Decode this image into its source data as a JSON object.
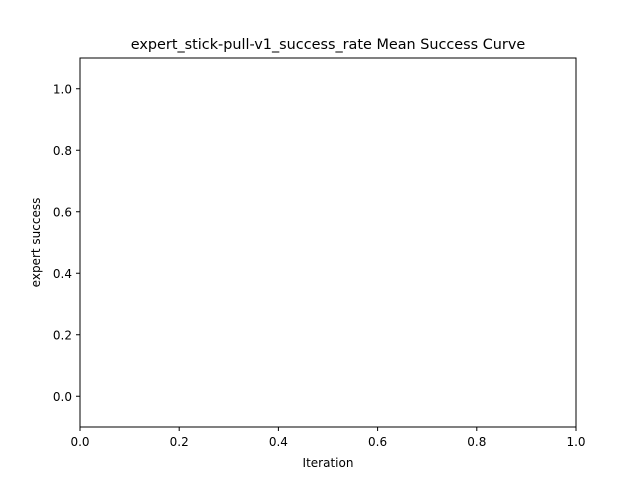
{
  "chart_data": {
    "type": "line",
    "title": "expert_stick-pull-v1_success_rate Mean Success Curve",
    "xlabel": "Iteration",
    "ylabel": "expert success",
    "xlim": [
      0.0,
      1.0
    ],
    "ylim": [
      -0.1,
      1.1
    ],
    "xticks": [
      0.0,
      0.2,
      0.4,
      0.6,
      0.8,
      1.0
    ],
    "yticks": [
      0.0,
      0.2,
      0.4,
      0.6,
      0.8,
      1.0
    ],
    "xtick_labels": [
      "0.0",
      "0.2",
      "0.4",
      "0.6",
      "0.8",
      "1.0"
    ],
    "ytick_labels": [
      "0.0",
      "0.2",
      "0.4",
      "0.6",
      "0.8",
      "1.0"
    ],
    "series": [],
    "grid": false,
    "legend": "none"
  },
  "colors": {
    "axis": "#000000",
    "background": "#ffffff"
  }
}
